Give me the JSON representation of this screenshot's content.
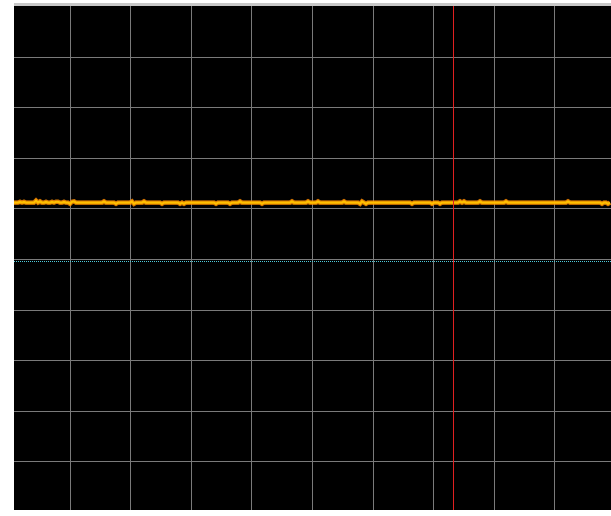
{
  "scope": {
    "grid_divisions": {
      "horizontal": 10,
      "vertical": 10
    },
    "colors": {
      "background": "#000000",
      "grid": "#7a7a7a",
      "border": "#c8c8c8",
      "trace": "#ffc000",
      "trace_glow": "#ff8c00",
      "baseline": "#4ec9d8",
      "cursor": "#e02020"
    },
    "cursor": {
      "position_fraction": 0.735
    },
    "trace": {
      "level_fraction": 0.39
    },
    "baseline": {
      "level_fraction": 0.505
    }
  }
}
